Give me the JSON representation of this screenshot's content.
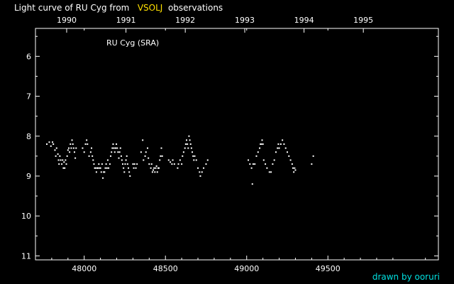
{
  "title": {
    "prefix": "Light curve of RU Cyg from",
    "source": "VSOLJ",
    "suffix": "observations",
    "source_color": "#ffe000"
  },
  "credit": {
    "text": "drawn by ooruri",
    "color": "#00e0e0"
  },
  "chart_data": {
    "type": "scatter",
    "annotation": "RU Cyg (SRA)",
    "xlim": [
      47700,
      50180
    ],
    "ylim": [
      5.3,
      11.1
    ],
    "y_inverted": true,
    "xticks": [
      48000,
      48500,
      49000,
      49500
    ],
    "yticks": [
      6,
      7,
      8,
      9,
      10,
      11
    ],
    "top_axis": {
      "labels": [
        "1990",
        "1991",
        "1992",
        "1993",
        "1994",
        "1995"
      ],
      "values": [
        47892,
        48257,
        48622,
        48988,
        49353,
        49718
      ]
    },
    "grid": false,
    "series": [
      {
        "color": "#ffffff",
        "points": [
          [
            47770,
            8.2
          ],
          [
            47785,
            8.15
          ],
          [
            47795,
            8.25
          ],
          [
            47805,
            8.15
          ],
          [
            47810,
            8.2
          ],
          [
            47820,
            8.35
          ],
          [
            47825,
            8.5
          ],
          [
            47830,
            8.3
          ],
          [
            47838,
            8.45
          ],
          [
            47842,
            8.6
          ],
          [
            47845,
            8.7
          ],
          [
            47850,
            8.5
          ],
          [
            47855,
            8.6
          ],
          [
            47862,
            8.7
          ],
          [
            47867,
            8.6
          ],
          [
            47872,
            8.8
          ],
          [
            47876,
            8.65
          ],
          [
            47880,
            8.8
          ],
          [
            47885,
            8.6
          ],
          [
            47890,
            8.7
          ],
          [
            47895,
            8.5
          ],
          [
            47900,
            8.35
          ],
          [
            47905,
            8.3
          ],
          [
            47910,
            8.4
          ],
          [
            47915,
            8.2
          ],
          [
            47920,
            8.3
          ],
          [
            47925,
            8.1
          ],
          [
            47930,
            8.2
          ],
          [
            47935,
            8.3
          ],
          [
            47940,
            8.4
          ],
          [
            47945,
            8.55
          ],
          [
            47950,
            8.3
          ],
          [
            47990,
            8.3
          ],
          [
            48000,
            8.4
          ],
          [
            48008,
            8.2
          ],
          [
            48015,
            8.1
          ],
          [
            48020,
            8.2
          ],
          [
            48030,
            8.5
          ],
          [
            48040,
            8.4
          ],
          [
            48045,
            8.3
          ],
          [
            48050,
            8.5
          ],
          [
            48055,
            8.6
          ],
          [
            48060,
            8.7
          ],
          [
            48065,
            8.8
          ],
          [
            48070,
            8.8
          ],
          [
            48075,
            8.9
          ],
          [
            48080,
            8.8
          ],
          [
            48085,
            8.8
          ],
          [
            48090,
            8.7
          ],
          [
            48095,
            8.8
          ],
          [
            48100,
            8.8
          ],
          [
            48105,
            8.9
          ],
          [
            48110,
            8.7
          ],
          [
            48115,
            9.05
          ],
          [
            48120,
            8.9
          ],
          [
            48125,
            8.9
          ],
          [
            48130,
            8.8
          ],
          [
            48135,
            8.7
          ],
          [
            48140,
            8.8
          ],
          [
            48145,
            8.6
          ],
          [
            48150,
            8.8
          ],
          [
            48158,
            8.7
          ],
          [
            48163,
            8.5
          ],
          [
            48168,
            8.4
          ],
          [
            48173,
            8.3
          ],
          [
            48178,
            8.2
          ],
          [
            48183,
            8.3
          ],
          [
            48188,
            8.4
          ],
          [
            48193,
            8.3
          ],
          [
            48198,
            8.2
          ],
          [
            48203,
            8.3
          ],
          [
            48208,
            8.4
          ],
          [
            48213,
            8.55
          ],
          [
            48218,
            8.4
          ],
          [
            48223,
            8.3
          ],
          [
            48228,
            8.5
          ],
          [
            48232,
            8.6
          ],
          [
            48237,
            8.7
          ],
          [
            48242,
            8.8
          ],
          [
            48247,
            8.9
          ],
          [
            48252,
            8.7
          ],
          [
            48257,
            8.6
          ],
          [
            48262,
            8.5
          ],
          [
            48267,
            8.7
          ],
          [
            48272,
            8.8
          ],
          [
            48277,
            8.9
          ],
          [
            48282,
            9.0
          ],
          [
            48300,
            8.7
          ],
          [
            48305,
            8.8
          ],
          [
            48310,
            8.7
          ],
          [
            48318,
            8.8
          ],
          [
            48325,
            8.7
          ],
          [
            48350,
            8.4
          ],
          [
            48360,
            8.1
          ],
          [
            48365,
            8.6
          ],
          [
            48375,
            8.5
          ],
          [
            48380,
            8.4
          ],
          [
            48390,
            8.3
          ],
          [
            48395,
            8.55
          ],
          [
            48400,
            8.7
          ],
          [
            48410,
            8.8
          ],
          [
            48415,
            8.7
          ],
          [
            48420,
            8.9
          ],
          [
            48425,
            8.85
          ],
          [
            48430,
            8.8
          ],
          [
            48435,
            8.9
          ],
          [
            48440,
            8.8
          ],
          [
            48445,
            8.75
          ],
          [
            48450,
            8.9
          ],
          [
            48455,
            8.8
          ],
          [
            48460,
            8.8
          ],
          [
            48465,
            8.6
          ],
          [
            48470,
            8.5
          ],
          [
            48475,
            8.3
          ],
          [
            48480,
            8.5
          ],
          [
            48520,
            8.6
          ],
          [
            48530,
            8.65
          ],
          [
            48540,
            8.7
          ],
          [
            48545,
            8.6
          ],
          [
            48555,
            8.7
          ],
          [
            48575,
            8.8
          ],
          [
            48580,
            8.7
          ],
          [
            48590,
            8.6
          ],
          [
            48600,
            8.7
          ],
          [
            48605,
            8.5
          ],
          [
            48612,
            8.4
          ],
          [
            48620,
            8.3
          ],
          [
            48625,
            8.2
          ],
          [
            48630,
            8.1
          ],
          [
            48635,
            8.2
          ],
          [
            48640,
            8.3
          ],
          [
            48645,
            8.0
          ],
          [
            48650,
            8.1
          ],
          [
            48655,
            8.2
          ],
          [
            48660,
            8.3
          ],
          [
            48665,
            8.4
          ],
          [
            48670,
            8.5
          ],
          [
            48675,
            8.6
          ],
          [
            48680,
            8.5
          ],
          [
            48690,
            8.6
          ],
          [
            48700,
            8.8
          ],
          [
            48710,
            8.9
          ],
          [
            48715,
            9.0
          ],
          [
            48725,
            8.9
          ],
          [
            48735,
            8.8
          ],
          [
            48750,
            8.7
          ],
          [
            48760,
            8.6
          ],
          [
            49010,
            8.6
          ],
          [
            49020,
            8.7
          ],
          [
            49030,
            8.8
          ],
          [
            49035,
            9.2
          ],
          [
            49040,
            8.7
          ],
          [
            49050,
            8.7
          ],
          [
            49060,
            8.5
          ],
          [
            49070,
            8.4
          ],
          [
            49080,
            8.3
          ],
          [
            49085,
            8.2
          ],
          [
            49090,
            8.2
          ],
          [
            49095,
            8.1
          ],
          [
            49100,
            8.2
          ],
          [
            49105,
            8.6
          ],
          [
            49115,
            8.7
          ],
          [
            49125,
            8.8
          ],
          [
            49140,
            8.9
          ],
          [
            49150,
            8.9
          ],
          [
            49160,
            8.7
          ],
          [
            49170,
            8.6
          ],
          [
            49180,
            8.4
          ],
          [
            49190,
            8.3
          ],
          [
            49195,
            8.2
          ],
          [
            49200,
            8.3
          ],
          [
            49210,
            8.2
          ],
          [
            49220,
            8.1
          ],
          [
            49230,
            8.2
          ],
          [
            49240,
            8.3
          ],
          [
            49250,
            8.4
          ],
          [
            49260,
            8.5
          ],
          [
            49270,
            8.6
          ],
          [
            49280,
            8.7
          ],
          [
            49285,
            8.8
          ],
          [
            49290,
            8.9
          ],
          [
            49295,
            8.8
          ],
          [
            49300,
            8.85
          ],
          [
            49400,
            8.7
          ],
          [
            49410,
            8.5
          ]
        ]
      }
    ]
  }
}
